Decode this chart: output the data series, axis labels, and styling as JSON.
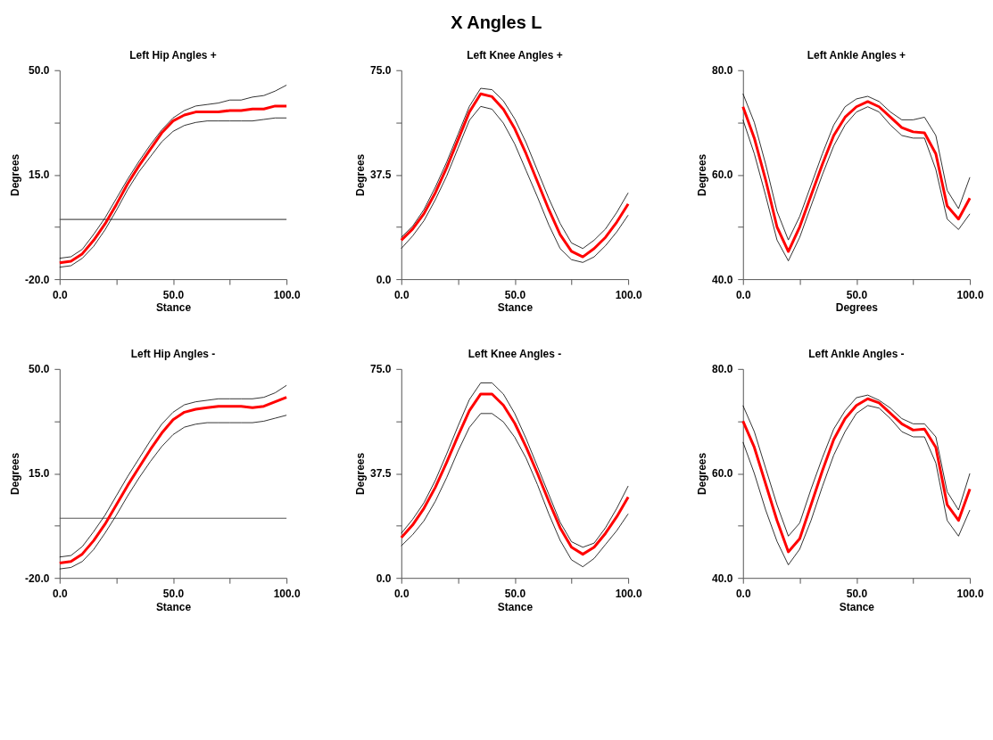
{
  "chart_data": [
    {
      "type": "line",
      "title": "Left Hip Angles +",
      "xlabel": "Stance",
      "ylabel": "Degrees",
      "annotations": [
        "X Angles L"
      ],
      "x": [
        0,
        5,
        10,
        15,
        20,
        25,
        30,
        35,
        40,
        45,
        50,
        55,
        60,
        65,
        70,
        75,
        80,
        85,
        90,
        95,
        100
      ],
      "xlim": [
        0,
        100
      ],
      "xticks": [
        {
          "value": 0,
          "label": "0.0"
        },
        {
          "value": 25,
          "label": null
        },
        {
          "value": 50,
          "label": "50.0"
        },
        {
          "value": 75,
          "label": null
        },
        {
          "value": 100,
          "label": "100.0"
        }
      ],
      "ylim": [
        -20,
        50
      ],
      "yticks": [
        {
          "value": -20,
          "label": "-20.0"
        },
        {
          "value": -2.5,
          "label": null
        },
        {
          "value": 15,
          "label": "15.0"
        },
        {
          "value": 32.5,
          "label": null
        },
        {
          "value": 50,
          "label": "50.0"
        }
      ],
      "grid": false,
      "ref_lines": [
        {
          "axis": "y",
          "value": 0,
          "color": "#555555"
        }
      ],
      "series": [
        {
          "color": "#000000",
          "values": [
            -13,
            -12.5,
            -10,
            -5,
            0.5,
            7,
            13.5,
            19.5,
            25,
            30,
            34,
            36.5,
            38,
            38.5,
            39,
            40,
            40,
            41,
            41.5,
            43,
            45
          ]
        },
        {
          "color": "#000000",
          "values": [
            -16,
            -15.5,
            -13,
            -9,
            -3.5,
            3,
            10,
            16,
            21,
            26,
            29.5,
            31.5,
            32.5,
            33,
            33,
            33,
            33,
            33,
            33.5,
            34,
            34
          ]
        },
        {
          "color": "#ff0000",
          "values": [
            -14.5,
            -14,
            -11.5,
            -7,
            -1.5,
            5,
            12,
            18,
            23.5,
            29,
            33,
            35,
            36,
            36,
            36,
            36.5,
            36.5,
            37,
            37,
            38,
            38
          ]
        }
      ]
    },
    {
      "type": "line",
      "title": "Left Knee Angles +",
      "xlabel": "Stance",
      "ylabel": "Degrees",
      "x": [
        0,
        5,
        10,
        15,
        20,
        25,
        30,
        35,
        40,
        45,
        50,
        55,
        60,
        65,
        70,
        75,
        80,
        85,
        90,
        95,
        100
      ],
      "xlim": [
        0,
        100
      ],
      "xticks": [
        {
          "value": 0,
          "label": "0.0"
        },
        {
          "value": 25,
          "label": null
        },
        {
          "value": 50,
          "label": "50.0"
        },
        {
          "value": 75,
          "label": null
        },
        {
          "value": 100,
          "label": "100.0"
        }
      ],
      "ylim": [
        0,
        75
      ],
      "yticks": [
        {
          "value": 0,
          "label": "0.0"
        },
        {
          "value": 18.75,
          "label": null
        },
        {
          "value": 37.5,
          "label": "37.5"
        },
        {
          "value": 56.25,
          "label": null
        },
        {
          "value": 75,
          "label": "75.0"
        }
      ],
      "grid": false,
      "series": [
        {
          "color": "#000000",
          "values": [
            15,
            19,
            25,
            33,
            42,
            52,
            62,
            68.5,
            68,
            64,
            57.5,
            49,
            39,
            29,
            20,
            13,
            11,
            14,
            18,
            24,
            31
          ]
        },
        {
          "color": "#000000",
          "values": [
            11,
            15.5,
            21,
            28.5,
            37,
            47,
            57,
            62,
            61,
            56,
            48.5,
            39,
            29.5,
            19.5,
            11,
            7,
            6,
            8,
            12,
            17,
            23
          ]
        },
        {
          "color": "#ff0000",
          "values": [
            14,
            18,
            23.5,
            31,
            40,
            50,
            60,
            66.5,
            65.5,
            61,
            54,
            45,
            35,
            25,
            16,
            10,
            8,
            11,
            15,
            20.5,
            27
          ]
        }
      ]
    },
    {
      "type": "line",
      "title": "Left Ankle Angles +",
      "xlabel": "Degrees",
      "ylabel": "Degrees",
      "x": [
        0,
        5,
        10,
        15,
        20,
        25,
        30,
        35,
        40,
        45,
        50,
        55,
        60,
        65,
        70,
        75,
        80,
        85,
        90,
        95,
        100
      ],
      "xlim": [
        0,
        100
      ],
      "xticks": [
        {
          "value": 0,
          "label": "0.0"
        },
        {
          "value": 25,
          "label": null
        },
        {
          "value": 50,
          "label": "50.0"
        },
        {
          "value": 75,
          "label": null
        },
        {
          "value": 100,
          "label": "100.0"
        }
      ],
      "ylim": [
        40,
        80
      ],
      "yticks": [
        {
          "value": 40,
          "label": "40.0"
        },
        {
          "value": 50,
          "label": null
        },
        {
          "value": 60,
          "label": "60.0"
        },
        {
          "value": 70,
          "label": null
        },
        {
          "value": 80,
          "label": "80.0"
        }
      ],
      "grid": false,
      "series": [
        {
          "color": "#000000",
          "values": [
            75.5,
            70,
            62,
            53,
            47.5,
            52,
            58,
            64,
            69.5,
            73,
            74.5,
            75,
            74,
            72,
            70.5,
            70.5,
            71,
            67.5,
            57,
            53.5,
            59.5
          ]
        },
        {
          "color": "#000000",
          "values": [
            70.5,
            64,
            56,
            47.5,
            43.5,
            48,
            54,
            60,
            65.5,
            69.5,
            72,
            73,
            72,
            69.5,
            67.5,
            67,
            67,
            61,
            51.5,
            49.5,
            52.5
          ]
        },
        {
          "color": "#ff0000",
          "values": [
            73,
            67,
            59,
            50,
            45.3,
            50,
            56,
            62,
            67.5,
            71,
            73,
            74,
            73,
            71,
            69,
            68.2,
            68,
            64,
            54,
            51.5,
            55.5
          ]
        }
      ]
    },
    {
      "type": "line",
      "title": "Left Hip Angles -",
      "xlabel": "Stance",
      "ylabel": "Degrees",
      "x": [
        0,
        5,
        10,
        15,
        20,
        25,
        30,
        35,
        40,
        45,
        50,
        55,
        60,
        65,
        70,
        75,
        80,
        85,
        90,
        95,
        100
      ],
      "xlim": [
        0,
        100
      ],
      "xticks": [
        {
          "value": 0,
          "label": "0.0"
        },
        {
          "value": 25,
          "label": null
        },
        {
          "value": 50,
          "label": "50.0"
        },
        {
          "value": 75,
          "label": null
        },
        {
          "value": 100,
          "label": "100.0"
        }
      ],
      "ylim": [
        -20,
        50
      ],
      "yticks": [
        {
          "value": -20,
          "label": "-20.0"
        },
        {
          "value": -2.5,
          "label": null
        },
        {
          "value": 15,
          "label": "15.0"
        },
        {
          "value": 32.5,
          "label": null
        },
        {
          "value": 50,
          "label": "50.0"
        }
      ],
      "grid": false,
      "ref_lines": [
        {
          "axis": "y",
          "value": 0,
          "color": "#555555"
        }
      ],
      "series": [
        {
          "color": "#000000",
          "values": [
            -13,
            -12.5,
            -9.5,
            -4.5,
            1,
            7.5,
            14,
            20,
            26,
            31.5,
            35.5,
            38,
            39,
            39.5,
            40,
            40,
            40,
            40,
            40.5,
            42,
            44.5
          ]
        },
        {
          "color": "#000000",
          "values": [
            -17,
            -16.5,
            -14.5,
            -10.5,
            -5,
            1,
            7.5,
            13.5,
            19,
            24,
            28,
            30.5,
            31.5,
            32,
            32,
            32,
            32,
            32,
            32.5,
            33.5,
            34.5
          ]
        },
        {
          "color": "#ff0000",
          "values": [
            -15,
            -14.5,
            -12,
            -7.5,
            -2,
            4.5,
            11,
            17,
            23,
            28.5,
            33,
            35.5,
            36.5,
            37,
            37.5,
            37.5,
            37.5,
            37,
            37.5,
            39,
            40.5
          ]
        }
      ]
    },
    {
      "type": "line",
      "title": "Left Knee Angles -",
      "xlabel": "Stance",
      "ylabel": "Degrees",
      "x": [
        0,
        5,
        10,
        15,
        20,
        25,
        30,
        35,
        40,
        45,
        50,
        55,
        60,
        65,
        70,
        75,
        80,
        85,
        90,
        95,
        100
      ],
      "xlim": [
        0,
        100
      ],
      "xticks": [
        {
          "value": 0,
          "label": "0.0"
        },
        {
          "value": 25,
          "label": null
        },
        {
          "value": 50,
          "label": "50.0"
        },
        {
          "value": 75,
          "label": null
        },
        {
          "value": 100,
          "label": "100.0"
        }
      ],
      "ylim": [
        0,
        75
      ],
      "yticks": [
        {
          "value": 0,
          "label": "0.0"
        },
        {
          "value": 18.75,
          "label": null
        },
        {
          "value": 37.5,
          "label": "37.5"
        },
        {
          "value": 56.25,
          "label": null
        },
        {
          "value": 75,
          "label": "75.0"
        }
      ],
      "grid": false,
      "series": [
        {
          "color": "#000000",
          "values": [
            16,
            21,
            27,
            35,
            44.5,
            54.5,
            64,
            70,
            70,
            66,
            59,
            50,
            40,
            30,
            20,
            13,
            11,
            12.5,
            18,
            25,
            33
          ]
        },
        {
          "color": "#000000",
          "values": [
            11.5,
            15.5,
            20.5,
            27.5,
            36,
            45.5,
            54,
            59,
            59,
            56,
            50.5,
            43,
            33.5,
            23,
            13.5,
            6.5,
            4,
            7,
            12,
            17,
            23
          ]
        },
        {
          "color": "#ff0000",
          "values": [
            14.5,
            19,
            25,
            32.5,
            41.5,
            51,
            60,
            66,
            66,
            62,
            55.5,
            47,
            37.5,
            27.5,
            18,
            11,
            8.5,
            11,
            16,
            22,
            29
          ]
        }
      ]
    },
    {
      "type": "line",
      "title": "Left Ankle Angles -",
      "xlabel": "Stance",
      "ylabel": "Degrees",
      "x": [
        0,
        5,
        10,
        15,
        20,
        25,
        30,
        35,
        40,
        45,
        50,
        55,
        60,
        65,
        70,
        75,
        80,
        85,
        90,
        95,
        100
      ],
      "xlim": [
        0,
        100
      ],
      "xticks": [
        {
          "value": 0,
          "label": "0.0"
        },
        {
          "value": 25,
          "label": null
        },
        {
          "value": 50,
          "label": "50.0"
        },
        {
          "value": 75,
          "label": null
        },
        {
          "value": 100,
          "label": "100.0"
        }
      ],
      "ylim": [
        40,
        80
      ],
      "yticks": [
        {
          "value": 40,
          "label": "40.0"
        },
        {
          "value": 50,
          "label": null
        },
        {
          "value": 60,
          "label": "60.0"
        },
        {
          "value": 70,
          "label": null
        },
        {
          "value": 80,
          "label": "80.0"
        }
      ],
      "grid": false,
      "series": [
        {
          "color": "#000000",
          "values": [
            73,
            68,
            61,
            54,
            48,
            50.5,
            57,
            63,
            68.5,
            72,
            74.5,
            75,
            74,
            72.5,
            70.5,
            69.5,
            69.5,
            67,
            56.5,
            53,
            60
          ]
        },
        {
          "color": "#000000",
          "values": [
            66,
            60,
            53,
            47,
            42.5,
            45.5,
            51,
            57.5,
            63.5,
            68,
            71.5,
            73,
            72.5,
            70.5,
            68,
            67,
            67,
            62,
            51,
            48,
            53
          ]
        },
        {
          "color": "#ff0000",
          "values": [
            70,
            65,
            58,
            51,
            45,
            47.5,
            54,
            60.5,
            66.5,
            70.5,
            73,
            74.3,
            73.5,
            71.5,
            69.5,
            68.3,
            68.5,
            65,
            54,
            51,
            57
          ]
        }
      ]
    }
  ]
}
